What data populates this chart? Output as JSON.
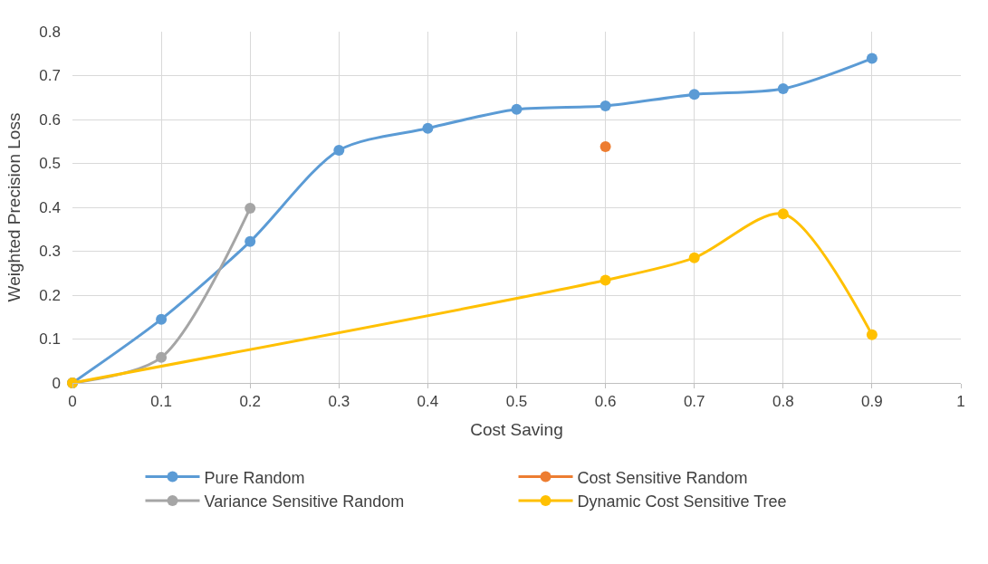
{
  "chart_data": {
    "type": "line",
    "xlabel": "Cost Saving",
    "ylabel": "Weighted Precision Loss",
    "xlim": [
      0,
      1
    ],
    "xticks": [
      0,
      0.1,
      0.2,
      0.3,
      0.4,
      0.5,
      0.6,
      0.7,
      0.8,
      0.9,
      1
    ],
    "ylim": [
      0,
      0.8
    ],
    "yticks": [
      0,
      0.1,
      0.2,
      0.3,
      0.4,
      0.5,
      0.6,
      0.7,
      0.8
    ],
    "grid": true,
    "legend": "bottom",
    "marker": "circle",
    "series": [
      {
        "name": "Pure Random",
        "color": "#5b9bd5",
        "x": [
          0,
          0.1,
          0.2,
          0.3,
          0.4,
          0.5,
          0.6,
          0.7,
          0.8,
          0.9
        ],
        "values": [
          0,
          0.145,
          0.322,
          0.53,
          0.58,
          0.623,
          0.631,
          0.657,
          0.67,
          0.739
        ]
      },
      {
        "name": "Cost Sensitive Random",
        "color": "#ed7d31",
        "x": [
          0.6
        ],
        "values": [
          0.538
        ]
      },
      {
        "name": "Variance Sensitive Random",
        "color": "#a5a5a5",
        "x": [
          0,
          0.1,
          0.2
        ],
        "values": [
          0,
          0.058,
          0.398
        ]
      },
      {
        "name": "Dynamic Cost Sensitive Tree",
        "color": "#ffc000",
        "x": [
          0,
          0.6,
          0.7,
          0.8,
          0.9
        ],
        "values": [
          0,
          0.234,
          0.285,
          0.385,
          0.11
        ]
      }
    ]
  }
}
